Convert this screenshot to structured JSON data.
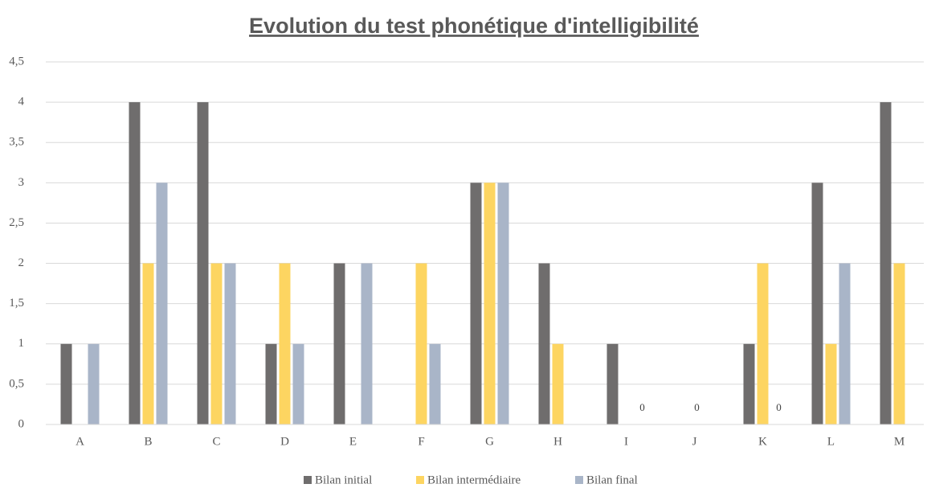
{
  "chart_data": {
    "type": "bar",
    "title": "Evolution du test phonétique d'intelligibilité",
    "categories": [
      "A",
      "B",
      "C",
      "D",
      "E",
      "F",
      "G",
      "H",
      "I",
      "J",
      "K",
      "L",
      "M"
    ],
    "series": [
      {
        "name": "Bilan initial",
        "color": "#6f6d6d",
        "values": [
          1,
          4,
          4,
          1,
          2,
          0,
          3,
          2,
          1,
          0,
          1,
          3,
          4
        ]
      },
      {
        "name": "Bilan intermédiaire",
        "color": "#fdd561",
        "values": [
          0,
          2,
          2,
          2,
          0,
          2,
          3,
          1,
          0,
          0,
          2,
          1,
          2
        ],
        "value_labels": [
          null,
          null,
          null,
          null,
          null,
          null,
          null,
          null,
          null,
          "0",
          null,
          null,
          null
        ]
      },
      {
        "name": "Bilan final",
        "color": "#a9b5c8",
        "values": [
          1,
          3,
          2,
          1,
          2,
          1,
          3,
          0,
          0,
          0,
          0,
          2,
          0
        ],
        "value_labels": [
          null,
          null,
          null,
          null,
          null,
          null,
          null,
          null,
          "0",
          null,
          "0",
          null,
          null
        ]
      }
    ],
    "ylim": [
      0,
      4.5
    ],
    "yticks": [
      0,
      {
        "value": 0.5,
        "label": "0,5"
      },
      1,
      {
        "value": 1.5,
        "label": "1,5"
      },
      2,
      {
        "value": 2.5,
        "label": "2,5"
      },
      3,
      {
        "value": 3.5,
        "label": "3,5"
      },
      4,
      {
        "value": 4.5,
        "label": "4,5"
      }
    ],
    "grid": true,
    "legend": "bottom"
  }
}
